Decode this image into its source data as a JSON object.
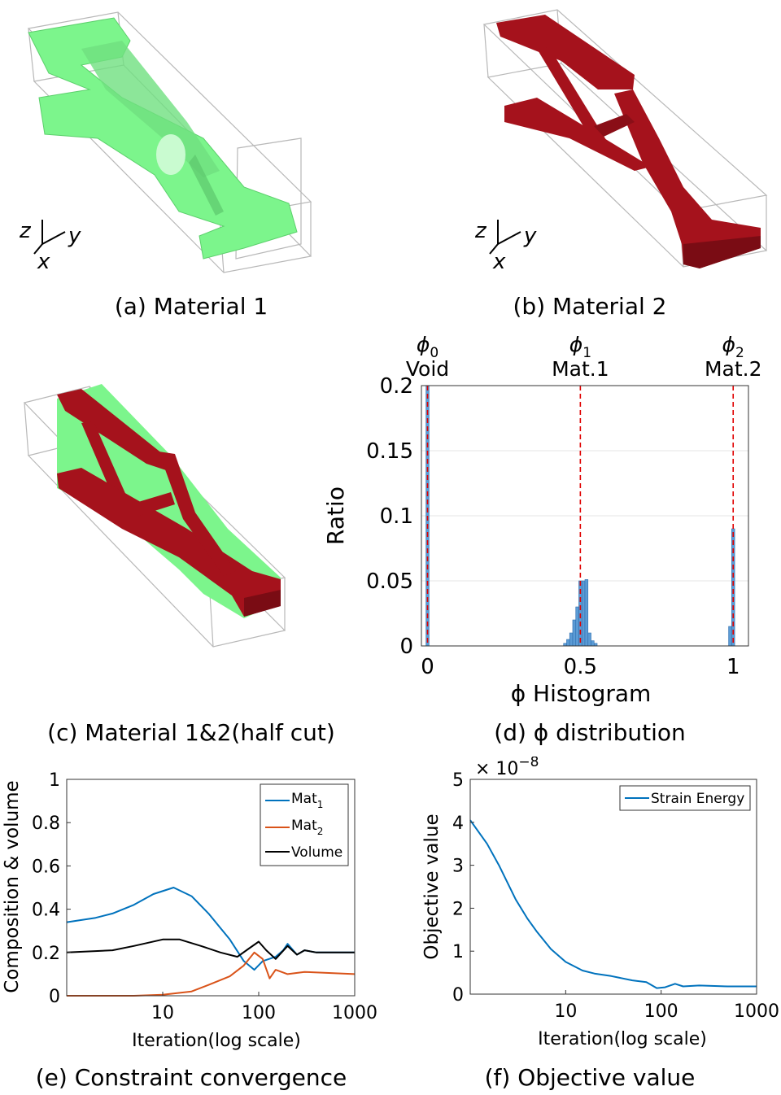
{
  "figure": {
    "panel_a": {
      "caption": "(a) Material 1",
      "axes": {
        "z": "z",
        "y": "y",
        "x": "x"
      },
      "color": "#7cf58c"
    },
    "panel_b": {
      "caption": "(b) Material 2",
      "axes": {
        "z": "z",
        "y": "y",
        "x": "x"
      },
      "color": "#a5121c"
    },
    "panel_c": {
      "caption": "(c) Material 1&2(half cut)"
    },
    "panel_d": {
      "caption": "(d) ϕ distribution"
    },
    "panel_e": {
      "caption": "(e) Constraint convergence"
    },
    "panel_f": {
      "caption": "(f) Objective value"
    }
  },
  "colors": {
    "mat1": "#7cf58c",
    "mat2": "#a5121c",
    "hist": "#5b9bd5",
    "blue": "#0072bd",
    "orange": "#d95319",
    "black": "#000000",
    "dash": "#e00000"
  },
  "chart_data": [
    {
      "type": "bar",
      "xlabel": "ϕ Histogram",
      "ylabel": "Ratio",
      "xticks": [
        "0",
        "0.5",
        "1"
      ],
      "yticks": [
        "0",
        "0.05",
        "0.1",
        "0.15",
        "0.2"
      ],
      "ylim": [
        0,
        0.2
      ],
      "xlim": [
        -0.02,
        1.05
      ],
      "grid": true,
      "reference_lines": [
        {
          "x": 0,
          "symbol": "ϕ",
          "sub": "0",
          "label": "Void"
        },
        {
          "x": 0.5,
          "symbol": "ϕ",
          "sub": "1",
          "label": "Mat.1"
        },
        {
          "x": 1,
          "symbol": "ϕ",
          "sub": "2",
          "label": "Mat.2"
        }
      ],
      "bins": [
        {
          "x": 0.0,
          "value": 0.2
        },
        {
          "x": 0.45,
          "value": 0.002
        },
        {
          "x": 0.46,
          "value": 0.005
        },
        {
          "x": 0.47,
          "value": 0.01
        },
        {
          "x": 0.48,
          "value": 0.02
        },
        {
          "x": 0.49,
          "value": 0.03
        },
        {
          "x": 0.5,
          "value": 0.05
        },
        {
          "x": 0.51,
          "value": 0.05
        },
        {
          "x": 0.52,
          "value": 0.051
        },
        {
          "x": 0.53,
          "value": 0.01
        },
        {
          "x": 0.54,
          "value": 0.004
        },
        {
          "x": 0.55,
          "value": 0.002
        },
        {
          "x": 0.99,
          "value": 0.015
        },
        {
          "x": 1.0,
          "value": 0.09
        }
      ]
    },
    {
      "type": "line",
      "xlabel": "Iteration(log scale)",
      "ylabel": "Composition & volume",
      "xscale": "log",
      "xlim": [
        1,
        1000
      ],
      "ylim": [
        0,
        1
      ],
      "xticks": [
        "10",
        "100",
        "1000"
      ],
      "yticks": [
        "0",
        "0.2",
        "0.4",
        "0.6",
        "0.8",
        "1"
      ],
      "legend": "top-right",
      "series": [
        {
          "name": "Mat",
          "sub": "1",
          "color": "#0072bd",
          "points": [
            [
              1,
              0.34
            ],
            [
              2,
              0.36
            ],
            [
              3,
              0.38
            ],
            [
              5,
              0.42
            ],
            [
              8,
              0.47
            ],
            [
              13,
              0.5
            ],
            [
              20,
              0.46
            ],
            [
              30,
              0.38
            ],
            [
              50,
              0.26
            ],
            [
              70,
              0.16
            ],
            [
              90,
              0.12
            ],
            [
              110,
              0.16
            ],
            [
              150,
              0.18
            ],
            [
              180,
              0.21
            ],
            [
              200,
              0.24
            ],
            [
              250,
              0.19
            ],
            [
              300,
              0.21
            ],
            [
              400,
              0.2
            ],
            [
              1000,
              0.2
            ]
          ]
        },
        {
          "name": "Mat",
          "sub": "2",
          "color": "#d95319",
          "points": [
            [
              1,
              0.0
            ],
            [
              5,
              0.0
            ],
            [
              10,
              0.005
            ],
            [
              20,
              0.02
            ],
            [
              30,
              0.05
            ],
            [
              50,
              0.09
            ],
            [
              70,
              0.14
            ],
            [
              90,
              0.2
            ],
            [
              110,
              0.17
            ],
            [
              130,
              0.08
            ],
            [
              150,
              0.12
            ],
            [
              200,
              0.1
            ],
            [
              300,
              0.11
            ],
            [
              1000,
              0.1
            ]
          ]
        },
        {
          "name": "Volume",
          "color": "#000000",
          "points": [
            [
              1,
              0.2
            ],
            [
              3,
              0.21
            ],
            [
              5,
              0.23
            ],
            [
              10,
              0.26
            ],
            [
              15,
              0.26
            ],
            [
              25,
              0.23
            ],
            [
              40,
              0.2
            ],
            [
              60,
              0.18
            ],
            [
              80,
              0.22
            ],
            [
              100,
              0.25
            ],
            [
              120,
              0.21
            ],
            [
              150,
              0.17
            ],
            [
              200,
              0.23
            ],
            [
              250,
              0.19
            ],
            [
              300,
              0.21
            ],
            [
              400,
              0.2
            ],
            [
              1000,
              0.2
            ]
          ]
        }
      ]
    },
    {
      "type": "line",
      "xlabel": "Iteration(log scale)",
      "ylabel": "Objective value",
      "multiplier": "× 10",
      "multiplier_exp": "−8",
      "xscale": "log",
      "xlim": [
        1,
        1000
      ],
      "ylim": [
        0,
        5
      ],
      "xticks": [
        "10",
        "100",
        "1000"
      ],
      "yticks": [
        "0",
        "1",
        "2",
        "3",
        "4",
        "5"
      ],
      "legend": "top-right",
      "series": [
        {
          "name": "Strain Energy",
          "color": "#0072bd",
          "points": [
            [
              1,
              4.05
            ],
            [
              1.5,
              3.5
            ],
            [
              2,
              3.0
            ],
            [
              3,
              2.2
            ],
            [
              4,
              1.75
            ],
            [
              5,
              1.45
            ],
            [
              7,
              1.05
            ],
            [
              10,
              0.75
            ],
            [
              15,
              0.55
            ],
            [
              20,
              0.48
            ],
            [
              30,
              0.42
            ],
            [
              50,
              0.32
            ],
            [
              70,
              0.28
            ],
            [
              90,
              0.14
            ],
            [
              110,
              0.16
            ],
            [
              140,
              0.24
            ],
            [
              170,
              0.18
            ],
            [
              250,
              0.2
            ],
            [
              500,
              0.18
            ],
            [
              1000,
              0.18
            ]
          ]
        }
      ]
    }
  ]
}
